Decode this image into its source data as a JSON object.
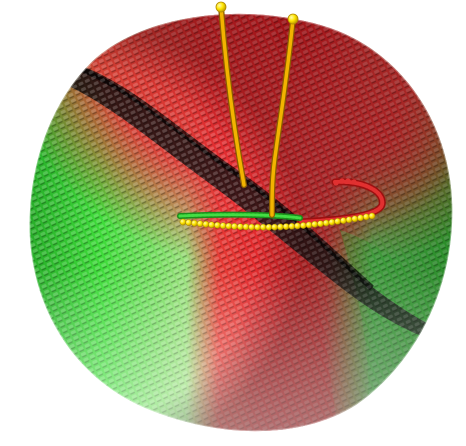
{
  "scene": {
    "background": "#ffffff",
    "colors": {
      "red": "#e8262c",
      "red_dark": "#7a0a0c",
      "red_light": "#f3b8b8",
      "green": "#2fd22f",
      "green_dark": "#0d3d10",
      "green_light": "#b8f0b8",
      "seam": "#111111",
      "tube": "#e9a400",
      "tube_dark": "#9c6b00",
      "bead": "#ffe600"
    },
    "objects": [
      "shell-surface",
      "dark-diagonal-seam",
      "vertical-tube-left",
      "vertical-tube-right",
      "bead-ring",
      "red-green-ring-arc"
    ]
  }
}
